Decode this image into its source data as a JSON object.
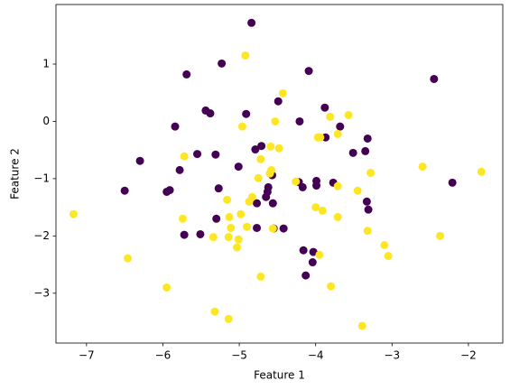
{
  "chart_data": {
    "type": "scatter",
    "xlabel": "Feature 1",
    "ylabel": "Feature 2",
    "xlim": [
      -7.4,
      -1.55
    ],
    "ylim": [
      -3.87,
      2.04
    ],
    "xticks": [
      {
        "value": -7,
        "label": "−7"
      },
      {
        "value": -6,
        "label": "−6"
      },
      {
        "value": -5,
        "label": "−5"
      },
      {
        "value": -4,
        "label": "−4"
      },
      {
        "value": -3,
        "label": "−3"
      },
      {
        "value": -2,
        "label": "−2"
      }
    ],
    "yticks": [
      {
        "value": -3,
        "label": "−3"
      },
      {
        "value": -2,
        "label": "−2"
      },
      {
        "value": -1,
        "label": "−1"
      },
      0,
      1
    ],
    "series": [
      {
        "color": "#440154",
        "x": [
          -4.84,
          -2.45,
          -5.23,
          -5.69,
          -4.09,
          -4.49,
          -4.91,
          -5.44,
          -5.38,
          -5.84,
          -4.21,
          -3.88,
          -3.68,
          -3.87,
          -6.3,
          -5.55,
          -5.31,
          -4.71,
          -4.79,
          -5.01,
          -5.78,
          -3.32,
          -3.35,
          -3.51,
          -4.57,
          -3.99,
          -4.22,
          -3.77,
          -4.62,
          -4.17,
          -3.99,
          -5.27,
          -4.63,
          -4.65,
          -6.5,
          -5.91,
          -5.95,
          -2.21,
          -3.33,
          -3.31,
          -5.3,
          -4.77,
          -4.56,
          -4.55,
          -4.77,
          -4.42,
          -5.72,
          -5.51,
          -4.16,
          -4.03,
          -4.04,
          -4.13
        ],
        "y": [
          1.72,
          0.74,
          1.01,
          0.82,
          0.88,
          0.35,
          0.13,
          0.19,
          0.14,
          -0.09,
          0.0,
          0.24,
          -0.09,
          -0.28,
          -0.69,
          -0.57,
          -0.58,
          -0.43,
          -0.49,
          -0.79,
          -0.85,
          -0.3,
          -0.52,
          -0.55,
          -0.94,
          -1.04,
          -1.06,
          -1.07,
          -1.15,
          -1.15,
          -1.12,
          -1.17,
          -1.23,
          -1.32,
          -1.21,
          -1.2,
          -1.23,
          -1.07,
          -1.4,
          -1.54,
          -1.7,
          -1.43,
          -1.43,
          -1.87,
          -1.86,
          -1.87,
          -1.98,
          -1.97,
          -2.25,
          -2.28,
          -2.46,
          -2.69
        ]
      },
      {
        "color": "#fde725",
        "x": [
          -4.92,
          -4.43,
          -4.53,
          -3.81,
          -3.57,
          -4.96,
          -3.71,
          -3.97,
          -3.94,
          -5.72,
          -4.72,
          -4.59,
          -4.48,
          -4.58,
          -4.6,
          -2.6,
          -3.28,
          -1.83,
          -4.75,
          -4.26,
          -3.71,
          -3.45,
          -7.17,
          -5.16,
          -4.83,
          -4.87,
          -4.0,
          -3.91,
          -3.71,
          -5.74,
          -5.13,
          -4.98,
          -5.11,
          -4.9,
          -4.56,
          -5.34,
          -5.14,
          -5.01,
          -5.03,
          -3.32,
          -2.37,
          -3.1,
          -3.05,
          -3.95,
          -6.46,
          -4.72,
          -3.8,
          -5.95,
          -5.32,
          -5.14,
          -3.39
        ],
        "y": [
          1.15,
          0.49,
          0.0,
          0.08,
          0.11,
          -0.09,
          -0.22,
          -0.28,
          -0.28,
          -0.61,
          -0.66,
          -0.44,
          -0.47,
          -0.85,
          -0.91,
          -0.79,
          -0.9,
          -0.88,
          -0.99,
          -1.05,
          -1.13,
          -1.21,
          -1.62,
          -1.37,
          -1.32,
          -1.4,
          -1.5,
          -1.56,
          -1.67,
          -1.7,
          -1.67,
          -1.62,
          -1.86,
          -1.84,
          -1.87,
          -2.02,
          -2.02,
          -2.06,
          -2.2,
          -1.91,
          -2.0,
          -2.16,
          -2.35,
          -2.33,
          -2.39,
          -2.71,
          -2.88,
          -2.9,
          -3.32,
          -3.45,
          -3.57
        ]
      }
    ]
  }
}
